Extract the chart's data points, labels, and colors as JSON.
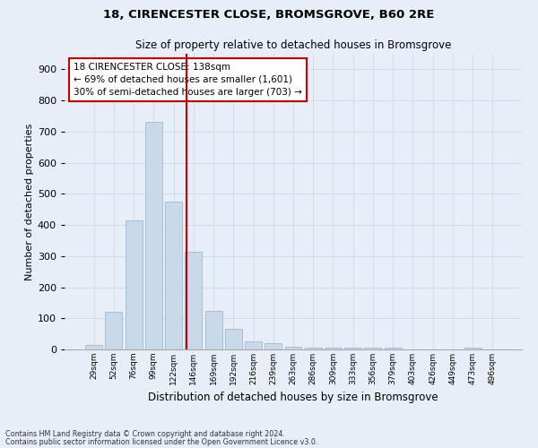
{
  "title1": "18, CIRENCESTER CLOSE, BROMSGROVE, B60 2RE",
  "title2": "Size of property relative to detached houses in Bromsgrove",
  "xlabel": "Distribution of detached houses by size in Bromsgrove",
  "ylabel": "Number of detached properties",
  "bin_labels": [
    "29sqm",
    "52sqm",
    "76sqm",
    "99sqm",
    "122sqm",
    "146sqm",
    "169sqm",
    "192sqm",
    "216sqm",
    "239sqm",
    "263sqm",
    "286sqm",
    "309sqm",
    "333sqm",
    "356sqm",
    "379sqm",
    "403sqm",
    "426sqm",
    "449sqm",
    "473sqm",
    "496sqm"
  ],
  "bar_values": [
    15,
    120,
    415,
    730,
    475,
    315,
    125,
    65,
    25,
    20,
    10,
    5,
    5,
    5,
    5,
    5,
    0,
    0,
    0,
    5,
    0
  ],
  "bar_color": "#c8d9ea",
  "bar_edge_color": "#a8bfd4",
  "grid_color": "#d0dcea",
  "bg_color": "#e8eef8",
  "annotation_text": "18 CIRENCESTER CLOSE: 138sqm\n← 69% of detached houses are smaller (1,601)\n30% of semi-detached houses are larger (703) →",
  "annotation_box_color": "#ffffff",
  "annotation_box_edge": "#cc0000",
  "footnote1": "Contains HM Land Registry data © Crown copyright and database right 2024.",
  "footnote2": "Contains public sector information licensed under the Open Government Licence v3.0.",
  "ylim": [
    0,
    950
  ],
  "yticks": [
    0,
    100,
    200,
    300,
    400,
    500,
    600,
    700,
    800,
    900
  ]
}
